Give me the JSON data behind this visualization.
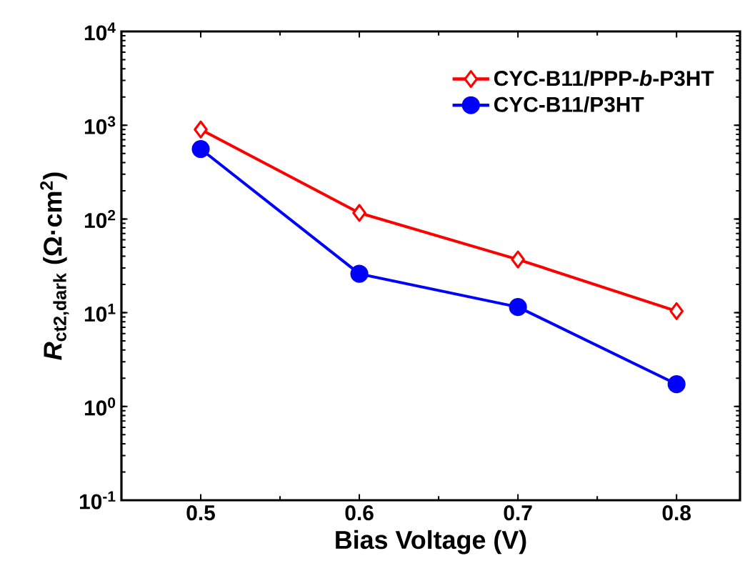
{
  "chart_data": {
    "type": "line",
    "xlabel": "Bias Voltage (V)",
    "ylabel": "*R*$_{ct2,dark}$ (Ω·cm$^{2}$)",
    "x": [
      0.5,
      0.6,
      0.7,
      0.8
    ],
    "series": [
      {
        "name": "CYC-B11/PPP-*b*-P3HT",
        "color": "#ff0000",
        "marker": "diamond",
        "values": [
          900,
          116,
          37,
          10.4
        ]
      },
      {
        "name": "CYC-B11/P3HT",
        "color": "#0000ff",
        "marker": "circle",
        "values": [
          557,
          26,
          11.5,
          1.73
        ]
      }
    ],
    "log": "y",
    "xlim": [
      0.45,
      0.84
    ],
    "xticks": [
      0.5,
      0.6,
      0.7,
      0.8
    ],
    "ylim": [
      0.1,
      10000
    ],
    "yticks": [
      {
        "value": 0.1,
        "label": "10$^{-1}$"
      },
      {
        "value": 1,
        "label": "10$^{0}$"
      },
      {
        "value": 10,
        "label": "10$^{1}$"
      },
      {
        "value": 100,
        "label": "10$^{2}$"
      },
      {
        "value": 1000,
        "label": "10$^{3}$"
      },
      {
        "value": 10000,
        "label": "10$^{4}$"
      }
    ],
    "grid": false,
    "legend": "top right",
    "line_style": "solid"
  }
}
